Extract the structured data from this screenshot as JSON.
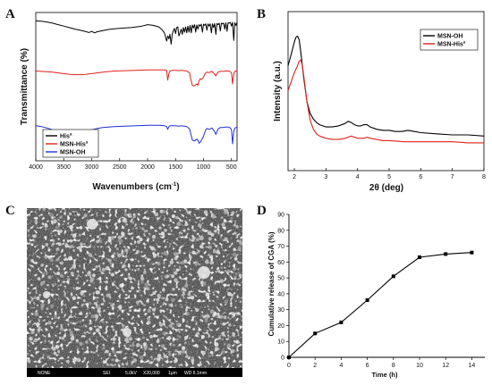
{
  "panels": {
    "A": {
      "label": "A"
    },
    "B": {
      "label": "B"
    },
    "C": {
      "label": "C"
    },
    "D": {
      "label": "D"
    }
  },
  "chart_data": [
    {
      "panel": "A",
      "type": "line",
      "xlabel": "Wavenumbers (cm",
      "xlabel_sup": "-1",
      "xlabel_end": ")",
      "ylabel": "Transmittance (%)",
      "xlim": [
        4000,
        400
      ],
      "x_reversed": true,
      "xticks": [
        4000,
        3500,
        3000,
        2500,
        2000,
        1500,
        1000,
        500
      ],
      "yticks_shown": false,
      "legend_position": "bottom-left",
      "series": [
        {
          "name": "His",
          "name_sup": "a",
          "color": "#000000",
          "x": [
            4000,
            3900,
            3800,
            3700,
            3600,
            3500,
            3400,
            3300,
            3200,
            3100,
            3050,
            3000,
            2950,
            2900,
            2800,
            2700,
            2600,
            2500,
            2400,
            2300,
            2200,
            2100,
            2000,
            1900,
            1800,
            1750,
            1700,
            1680,
            1660,
            1640,
            1620,
            1600,
            1580,
            1560,
            1540,
            1520,
            1500,
            1480,
            1460,
            1440,
            1420,
            1400,
            1380,
            1360,
            1340,
            1320,
            1300,
            1280,
            1260,
            1240,
            1220,
            1200,
            1180,
            1160,
            1140,
            1120,
            1100,
            1080,
            1060,
            1040,
            1020,
            1000,
            980,
            960,
            940,
            920,
            900,
            880,
            860,
            840,
            820,
            800,
            780,
            760,
            740,
            720,
            700,
            680,
            660,
            640,
            620,
            600,
            580,
            560,
            540,
            520,
            500,
            480,
            460,
            440,
            420,
            400
          ],
          "y": [
            92,
            91,
            89,
            86,
            82,
            78,
            74,
            70,
            67,
            63,
            61,
            64,
            60,
            63,
            66,
            69,
            71,
            72,
            73,
            74,
            76,
            78,
            82,
            80,
            76,
            70,
            60,
            50,
            38,
            52,
            44,
            56,
            30,
            56,
            66,
            72,
            58,
            74,
            76,
            52,
            60,
            70,
            56,
            74,
            62,
            76,
            60,
            78,
            62,
            80,
            60,
            81,
            73,
            82,
            62,
            81,
            70,
            82,
            78,
            83,
            62,
            83,
            80,
            84,
            67,
            84,
            78,
            84,
            60,
            84,
            74,
            85,
            56,
            85,
            82,
            86,
            65,
            86,
            84,
            86,
            70,
            87,
            64,
            87,
            86,
            88,
            78,
            88,
            40,
            87,
            80,
            88
          ]
        },
        {
          "name": "MSN-His",
          "name_sup": "a",
          "color": "#e0201c",
          "x": [
            4000,
            3900,
            3800,
            3700,
            3600,
            3500,
            3400,
            3300,
            3200,
            3100,
            3000,
            2900,
            2800,
            2600,
            2400,
            2200,
            2000,
            1900,
            1800,
            1700,
            1660,
            1640,
            1620,
            1600,
            1560,
            1500,
            1450,
            1400,
            1350,
            1300,
            1250,
            1230,
            1200,
            1170,
            1150,
            1120,
            1100,
            1080,
            1060,
            1040,
            1000,
            980,
            960,
            940,
            900,
            850,
            800,
            780,
            760,
            740,
            700,
            650,
            600,
            550,
            520,
            500,
            480,
            460,
            440,
            420,
            400
          ],
          "y": [
            67,
            66,
            65,
            64,
            62,
            60,
            58,
            57,
            57,
            58,
            60,
            62,
            64,
            67,
            68,
            69,
            70,
            70,
            70,
            70,
            69,
            42,
            60,
            67,
            69,
            69,
            68,
            69,
            68,
            67,
            62,
            46,
            28,
            26,
            28,
            32,
            28,
            40,
            46,
            44,
            50,
            58,
            62,
            64,
            63,
            66,
            58,
            54,
            60,
            64,
            66,
            66,
            67,
            67,
            65,
            62,
            32,
            60,
            66,
            67,
            68
          ]
        },
        {
          "name": "MSN-OH",
          "name_sup": "",
          "color": "#1f2fd6",
          "x": [
            4000,
            3900,
            3800,
            3700,
            3600,
            3550,
            3500,
            3450,
            3400,
            3350,
            3300,
            3250,
            3200,
            3100,
            3000,
            2900,
            2800,
            2600,
            2400,
            2200,
            2000,
            1900,
            1800,
            1700,
            1660,
            1640,
            1620,
            1600,
            1550,
            1500,
            1450,
            1400,
            1350,
            1300,
            1250,
            1230,
            1200,
            1170,
            1150,
            1120,
            1100,
            1080,
            1060,
            1040,
            1000,
            980,
            960,
            940,
            900,
            850,
            800,
            780,
            760,
            740,
            700,
            650,
            600,
            550,
            520,
            500,
            480,
            460,
            440,
            420,
            400
          ],
          "y": [
            41,
            39,
            36,
            32,
            28,
            24,
            20,
            17,
            16,
            17,
            19,
            22,
            25,
            29,
            32,
            35,
            37,
            39,
            40,
            41,
            42,
            42,
            42,
            41,
            39,
            33,
            39,
            41,
            41,
            41,
            40,
            41,
            40,
            39,
            34,
            25,
            10,
            8,
            9,
            12,
            10,
            3,
            5,
            9,
            18,
            26,
            32,
            35,
            33,
            36,
            28,
            22,
            28,
            34,
            37,
            37,
            38,
            38,
            36,
            32,
            2,
            28,
            36,
            37,
            38
          ]
        }
      ]
    },
    {
      "panel": "B",
      "type": "line",
      "xlabel": "2θ (deg)",
      "ylabel": "Intensity (a.u.)",
      "xlim": [
        1.8,
        8
      ],
      "xticks": [
        2,
        3,
        4,
        5,
        6,
        7,
        8
      ],
      "yticks_shown": false,
      "legend_position": "top-right",
      "series": [
        {
          "name": "MSN-OH",
          "name_sup": "",
          "color": "#000000",
          "x": [
            1.8,
            1.9,
            2.0,
            2.05,
            2.1,
            2.15,
            2.2,
            2.3,
            2.4,
            2.5,
            2.6,
            2.7,
            2.8,
            3.0,
            3.2,
            3.4,
            3.6,
            3.7,
            3.8,
            3.9,
            4.0,
            4.1,
            4.2,
            4.3,
            4.4,
            4.6,
            4.8,
            5.0,
            5.2,
            5.4,
            5.6,
            5.8,
            6.0,
            6.5,
            7.0,
            7.5,
            8.0
          ],
          "y": [
            72,
            82,
            93,
            97,
            98,
            95,
            85,
            60,
            40,
            30,
            25,
            22,
            20,
            18,
            18,
            19,
            21,
            23,
            22,
            20,
            19,
            19,
            20,
            20,
            18,
            16,
            15,
            15,
            14,
            14,
            15,
            14,
            13,
            12,
            11,
            11,
            10
          ]
        },
        {
          "name": "MSN-His",
          "name_sup": "a",
          "color": "#e0201c",
          "x": [
            1.8,
            1.9,
            2.0,
            2.1,
            2.15,
            2.2,
            2.25,
            2.3,
            2.4,
            2.5,
            2.6,
            2.7,
            2.8,
            3.0,
            3.2,
            3.4,
            3.6,
            3.7,
            3.8,
            3.9,
            4.0,
            4.2,
            4.3,
            4.4,
            4.6,
            4.8,
            5.0,
            5.5,
            6.0,
            6.5,
            7.0,
            7.5,
            8.0
          ],
          "y": [
            50,
            58,
            66,
            72,
            76,
            77,
            73,
            62,
            40,
            24,
            16,
            12,
            10,
            8,
            7,
            7,
            8,
            9,
            10,
            9,
            8,
            8,
            9,
            8,
            7,
            6,
            6,
            5,
            5,
            5,
            5,
            4,
            4
          ]
        }
      ]
    },
    {
      "panel": "D",
      "type": "line",
      "xlabel": "Time (h)",
      "ylabel": "Cumulative release of CGA (%)",
      "xlim": [
        0,
        15
      ],
      "ylim": [
        0,
        90
      ],
      "xticks": [
        0,
        2,
        4,
        6,
        8,
        10,
        12,
        14
      ],
      "yticks": [
        0,
        10,
        20,
        30,
        40,
        50,
        60,
        70,
        80,
        90
      ],
      "grid": false,
      "series": [
        {
          "color": "#000000",
          "marker": "square",
          "x": [
            0,
            2,
            4,
            6,
            8,
            10,
            12,
            14
          ],
          "y": [
            0,
            15,
            22,
            36,
            51,
            63,
            65,
            66
          ]
        }
      ]
    }
  ],
  "sem": {
    "info": [
      "NONE",
      "SEI",
      "5.0kV",
      "X20,000",
      "1μm",
      "WD 6.1mm"
    ]
  }
}
